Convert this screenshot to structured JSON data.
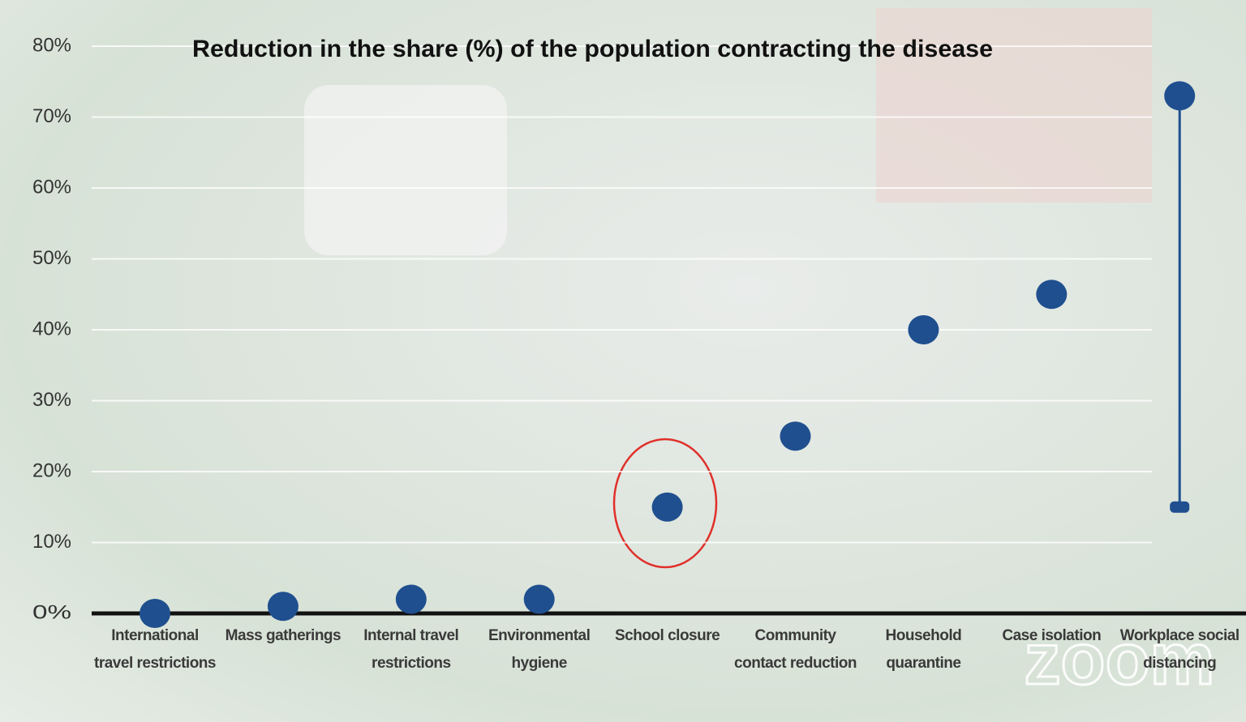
{
  "chart_data": {
    "type": "dot",
    "title": "Reduction in the share (%) of the population contracting the disease",
    "categories": [
      "International travel restrictions",
      "Mass gatherings",
      "Internal travel restrictions",
      "Environmental hygiene",
      "School closure",
      "Community contact reduction",
      "Household quarantine",
      "Case isolation",
      "Workplace social distancing"
    ],
    "values": [
      0,
      1,
      2,
      2,
      15,
      25,
      40,
      45,
      73
    ],
    "lows": [
      null,
      null,
      null,
      null,
      null,
      null,
      null,
      null,
      15
    ],
    "color": "#1f4f8f",
    "ylim": [
      0,
      80
    ],
    "yticks": [
      {
        "value": 0,
        "label": "0%"
      },
      {
        "value": 10,
        "label": "10%"
      },
      {
        "value": 20,
        "label": "20%"
      },
      {
        "value": 30,
        "label": "30%"
      },
      {
        "value": 40,
        "label": "40%"
      },
      {
        "value": 50,
        "label": "50%"
      },
      {
        "value": 60,
        "label": "60%"
      },
      {
        "value": 70,
        "label": "70%"
      },
      {
        "value": 80,
        "label": "80%"
      }
    ],
    "grid": true,
    "watermark": "zoom"
  }
}
